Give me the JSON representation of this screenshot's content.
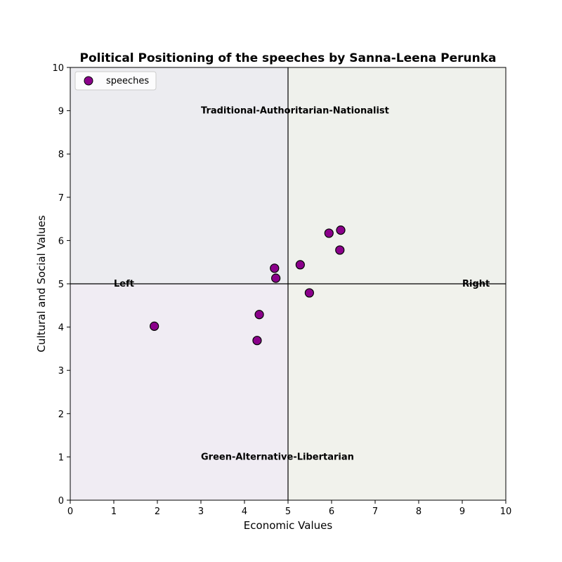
{
  "chart_data": {
    "type": "scatter",
    "title": "Political Positioning of the speeches by Sanna-Leena Perunka",
    "xlabel": "Economic Values",
    "ylabel": "Cultural and Social Values",
    "xlim": [
      0,
      10
    ],
    "ylim": [
      0,
      10
    ],
    "xticks": [
      0,
      1,
      2,
      3,
      4,
      5,
      6,
      7,
      8,
      9,
      10
    ],
    "yticks": [
      0,
      1,
      2,
      3,
      4,
      5,
      6,
      7,
      8,
      9,
      10
    ],
    "grid": false,
    "legend": {
      "position": "upper-left",
      "entries": [
        "speeches"
      ]
    },
    "series": [
      {
        "name": "speeches",
        "color": "#8b008b",
        "edge_color": "#000000",
        "points": [
          {
            "x": 1.93,
            "y": 4.02
          },
          {
            "x": 4.29,
            "y": 3.69
          },
          {
            "x": 4.34,
            "y": 4.29
          },
          {
            "x": 4.69,
            "y": 5.36
          },
          {
            "x": 4.72,
            "y": 5.13
          },
          {
            "x": 5.28,
            "y": 5.44
          },
          {
            "x": 5.49,
            "y": 4.79
          },
          {
            "x": 5.94,
            "y": 6.17
          },
          {
            "x": 6.19,
            "y": 5.78
          },
          {
            "x": 6.21,
            "y": 6.24
          }
        ]
      }
    ],
    "reference_lines": {
      "x": 5,
      "y": 5
    },
    "quadrants": [
      {
        "name": "top-left",
        "color": "#ececf0"
      },
      {
        "name": "top-right",
        "color": "#eff1ec"
      },
      {
        "name": "bottom-left",
        "color": "#f0ecf3"
      },
      {
        "name": "bottom-right",
        "color": "#f1f2ec"
      }
    ],
    "annotations": [
      {
        "text": "Traditional-Authoritarian-Nationalist",
        "x": 3.0,
        "y": 9.0
      },
      {
        "text": "Green-Alternative-Libertarian",
        "x": 3.0,
        "y": 1.0
      },
      {
        "text": "Left",
        "x": 1.0,
        "y": 5.0
      },
      {
        "text": "Right",
        "x": 9.0,
        "y": 5.0
      }
    ]
  }
}
